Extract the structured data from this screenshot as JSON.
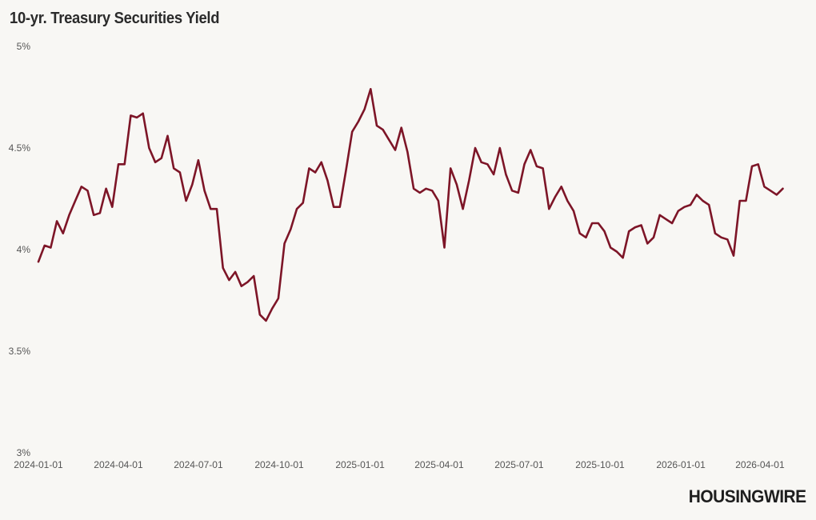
{
  "chart_data": {
    "type": "line",
    "title": "10-yr. Treasury Securities Yield",
    "xlabel": "",
    "ylabel": "",
    "ylim": [
      3,
      5
    ],
    "xlim": [
      "2024-01-01",
      "2026-04-27"
    ],
    "yticks": [
      {
        "value": 3,
        "label": "3%"
      },
      {
        "value": 3.5,
        "label": "3.5%"
      },
      {
        "value": 4,
        "label": "4%"
      },
      {
        "value": 4.5,
        "label": "4.5%"
      },
      {
        "value": 5,
        "label": "5%"
      }
    ],
    "xticks": [
      "2024-01-01",
      "2024-04-01",
      "2024-07-01",
      "2024-10-01",
      "2025-01-01",
      "2025-04-01",
      "2025-07-01",
      "2025-10-01",
      "2026-01-01",
      "2026-04-01"
    ],
    "grid": false,
    "legend": "none",
    "color": "#7d1527",
    "series": [
      {
        "points": [
          [
            "2024-01-01",
            3.94
          ],
          [
            "2024-01-08",
            4.02
          ],
          [
            "2024-01-15",
            4.01
          ],
          [
            "2024-01-22",
            4.14
          ],
          [
            "2024-01-29",
            4.08
          ],
          [
            "2024-02-05",
            4.17
          ],
          [
            "2024-02-12",
            4.24
          ],
          [
            "2024-02-19",
            4.31
          ],
          [
            "2024-02-26",
            4.29
          ],
          [
            "2024-03-04",
            4.17
          ],
          [
            "2024-03-11",
            4.18
          ],
          [
            "2024-03-18",
            4.3
          ],
          [
            "2024-03-25",
            4.21
          ],
          [
            "2024-04-01",
            4.42
          ],
          [
            "2024-04-08",
            4.42
          ],
          [
            "2024-04-15",
            4.66
          ],
          [
            "2024-04-22",
            4.65
          ],
          [
            "2024-04-29",
            4.67
          ],
          [
            "2024-05-06",
            4.5
          ],
          [
            "2024-05-13",
            4.43
          ],
          [
            "2024-05-20",
            4.45
          ],
          [
            "2024-05-27",
            4.56
          ],
          [
            "2024-06-03",
            4.4
          ],
          [
            "2024-06-10",
            4.38
          ],
          [
            "2024-06-17",
            4.24
          ],
          [
            "2024-06-24",
            4.32
          ],
          [
            "2024-07-01",
            4.44
          ],
          [
            "2024-07-08",
            4.29
          ],
          [
            "2024-07-15",
            4.2
          ],
          [
            "2024-07-22",
            4.2
          ],
          [
            "2024-07-29",
            3.91
          ],
          [
            "2024-08-05",
            3.85
          ],
          [
            "2024-08-12",
            3.89
          ],
          [
            "2024-08-19",
            3.82
          ],
          [
            "2024-08-26",
            3.84
          ],
          [
            "2024-09-02",
            3.87
          ],
          [
            "2024-09-09",
            3.68
          ],
          [
            "2024-09-16",
            3.65
          ],
          [
            "2024-09-23",
            3.71
          ],
          [
            "2024-09-30",
            3.76
          ],
          [
            "2024-10-07",
            4.03
          ],
          [
            "2024-10-14",
            4.1
          ],
          [
            "2024-10-21",
            4.2
          ],
          [
            "2024-10-28",
            4.23
          ],
          [
            "2024-11-04",
            4.4
          ],
          [
            "2024-11-11",
            4.38
          ],
          [
            "2024-11-18",
            4.43
          ],
          [
            "2024-11-25",
            4.34
          ],
          [
            "2024-12-02",
            4.21
          ],
          [
            "2024-12-09",
            4.21
          ],
          [
            "2024-12-16",
            4.39
          ],
          [
            "2024-12-23",
            4.58
          ],
          [
            "2024-12-30",
            4.63
          ],
          [
            "2025-01-06",
            4.69
          ],
          [
            "2025-01-13",
            4.79
          ],
          [
            "2025-01-20",
            4.61
          ],
          [
            "2025-01-27",
            4.59
          ],
          [
            "2025-02-03",
            4.54
          ],
          [
            "2025-02-10",
            4.49
          ],
          [
            "2025-02-17",
            4.6
          ],
          [
            "2025-02-24",
            4.48
          ],
          [
            "2025-03-03",
            4.3
          ],
          [
            "2025-03-10",
            4.28
          ],
          [
            "2025-03-17",
            4.3
          ],
          [
            "2025-03-24",
            4.29
          ],
          [
            "2025-03-31",
            4.24
          ],
          [
            "2025-04-07",
            4.01
          ],
          [
            "2025-04-14",
            4.4
          ],
          [
            "2025-04-21",
            4.32
          ],
          [
            "2025-04-28",
            4.2
          ],
          [
            "2025-05-05",
            4.34
          ],
          [
            "2025-05-12",
            4.5
          ],
          [
            "2025-05-19",
            4.43
          ],
          [
            "2025-05-26",
            4.42
          ],
          [
            "2025-06-02",
            4.37
          ],
          [
            "2025-06-09",
            4.5
          ],
          [
            "2025-06-16",
            4.37
          ],
          [
            "2025-06-23",
            4.29
          ],
          [
            "2025-06-30",
            4.28
          ],
          [
            "2025-07-07",
            4.42
          ],
          [
            "2025-07-14",
            4.49
          ],
          [
            "2025-07-21",
            4.41
          ],
          [
            "2025-07-28",
            4.4
          ],
          [
            "2025-08-04",
            4.2
          ],
          [
            "2025-08-11",
            4.26
          ],
          [
            "2025-08-18",
            4.31
          ],
          [
            "2025-08-25",
            4.24
          ],
          [
            "2025-09-01",
            4.19
          ],
          [
            "2025-09-08",
            4.08
          ],
          [
            "2025-09-15",
            4.06
          ],
          [
            "2025-09-22",
            4.13
          ],
          [
            "2025-09-29",
            4.13
          ],
          [
            "2025-10-06",
            4.09
          ],
          [
            "2025-10-13",
            4.01
          ],
          [
            "2025-10-20",
            3.99
          ],
          [
            "2025-10-27",
            3.96
          ],
          [
            "2025-11-03",
            4.09
          ],
          [
            "2025-11-10",
            4.11
          ],
          [
            "2025-11-17",
            4.12
          ],
          [
            "2025-11-24",
            4.03
          ],
          [
            "2025-12-01",
            4.06
          ],
          [
            "2025-12-08",
            4.17
          ],
          [
            "2025-12-15",
            4.15
          ],
          [
            "2025-12-22",
            4.13
          ],
          [
            "2025-12-29",
            4.19
          ],
          [
            "2026-01-05",
            4.21
          ],
          [
            "2026-01-12",
            4.22
          ],
          [
            "2026-01-19",
            4.27
          ],
          [
            "2026-01-26",
            4.24
          ],
          [
            "2026-02-02",
            4.22
          ],
          [
            "2026-02-09",
            4.08
          ],
          [
            "2026-02-16",
            4.06
          ],
          [
            "2026-02-23",
            4.05
          ],
          [
            "2026-03-02",
            3.97
          ],
          [
            "2026-03-09",
            4.24
          ],
          [
            "2026-03-16",
            4.24
          ],
          [
            "2026-03-23",
            4.41
          ],
          [
            "2026-03-30",
            4.42
          ],
          [
            "2026-04-06",
            4.31
          ],
          [
            "2026-04-13",
            4.29
          ],
          [
            "2026-04-20",
            4.27
          ],
          [
            "2026-04-27",
            4.3
          ]
        ]
      }
    ]
  },
  "branding": {
    "logo_text": "HOUSINGWIRE"
  }
}
